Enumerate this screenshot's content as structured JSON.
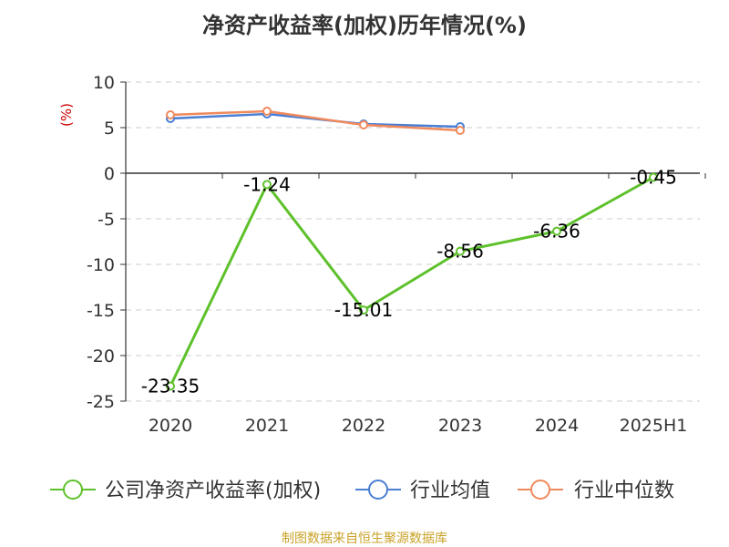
{
  "chart_data": {
    "type": "line",
    "title": "净资产收益率(加权)历年情况(%)",
    "ylabel": "(%)",
    "categories": [
      "2020",
      "2021",
      "2022",
      "2023",
      "2024",
      "2025H1"
    ],
    "ylim": [
      -25,
      10
    ],
    "yticks": [
      "10",
      "5",
      "0",
      "-5",
      "-10",
      "-15",
      "-20",
      "-25"
    ],
    "grid": true,
    "legend_position": "bottom",
    "series": [
      {
        "name": "公司净资产收益率(加权)",
        "color": "#5ec12b",
        "label_color": "#000000",
        "values": [
          -23.35,
          -1.24,
          -15.01,
          -8.56,
          -6.36,
          -0.45
        ],
        "labels": [
          "-23.35",
          "-1.24",
          "-15.01",
          "-8.56",
          "-6.36",
          "-0.45"
        ]
      },
      {
        "name": "行业均值",
        "color": "#4a7fd4",
        "values": [
          6.0,
          6.5,
          5.4,
          5.1,
          null,
          null
        ]
      },
      {
        "name": "行业中位数",
        "color": "#f08a5d",
        "values": [
          6.4,
          6.8,
          5.3,
          4.7,
          null,
          null
        ]
      }
    ]
  },
  "footer": {
    "source": "制图数据来自恒生聚源数据库"
  }
}
